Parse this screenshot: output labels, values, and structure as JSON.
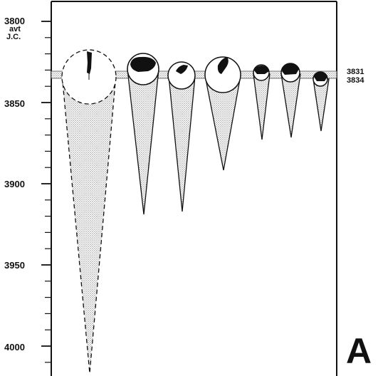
{
  "axis": {
    "top_label": "3800",
    "unit_line1": "avt",
    "unit_line2": "J.C.",
    "tick_labels": [
      "3850",
      "3900",
      "3950",
      "4000"
    ],
    "range": [
      3800,
      4010
    ],
    "direction": "downward"
  },
  "reference_band": {
    "label_top": "3831",
    "label_bottom": "3834",
    "from": 3831,
    "to": 3834
  },
  "panel_letter": "A",
  "colors": {
    "ink": "#111111",
    "stipple": "#8a8a8a",
    "background": "#ffffff"
  },
  "cones": [
    {
      "name": "cone-1",
      "base_year": 3831,
      "apex_year": 4008,
      "dashed": true
    },
    {
      "name": "cone-2",
      "base_year": 3831,
      "apex_year": 3920,
      "dashed": false
    },
    {
      "name": "cone-3",
      "base_year": 3831,
      "apex_year": 3917,
      "dashed": false
    },
    {
      "name": "cone-4",
      "base_year": 3831,
      "apex_year": 3890,
      "dashed": false
    },
    {
      "name": "cone-5",
      "base_year": 3831,
      "apex_year": 3870,
      "dashed": false
    },
    {
      "name": "cone-6",
      "base_year": 3831,
      "apex_year": 3872,
      "dashed": false
    },
    {
      "name": "cone-7",
      "base_year": 3831,
      "apex_year": 3864,
      "dashed": false
    }
  ]
}
